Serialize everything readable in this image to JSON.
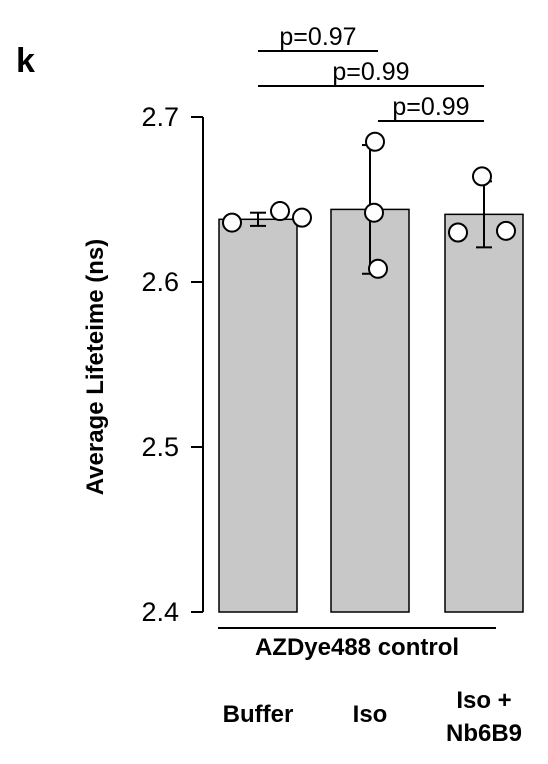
{
  "panel_label": "k",
  "chart_data": {
    "type": "bar",
    "ylabel": "Average Lifeteime (ns)",
    "ylim": [
      2.4,
      2.7
    ],
    "yticks": [
      "2.4",
      "2.5",
      "2.6",
      "2.7"
    ],
    "group_label": "AZDye488 control",
    "categories": [
      {
        "lines": [
          "Buffer"
        ]
      },
      {
        "lines": [
          "Iso"
        ]
      },
      {
        "lines": [
          "Iso +",
          "Nb6B9"
        ]
      }
    ],
    "values": [
      2.638,
      2.644,
      2.641
    ],
    "error": [
      0.004,
      0.039,
      0.02
    ],
    "points": [
      [
        2.636,
        2.643,
        2.639
      ],
      [
        2.685,
        2.642,
        2.608
      ],
      [
        2.664,
        2.63,
        2.631
      ]
    ],
    "comparisons": [
      {
        "text": "p=0.97",
        "from": 0,
        "to": 1
      },
      {
        "text": "p=0.99",
        "from": 0,
        "to": 2
      },
      {
        "text": "p=0.99",
        "from": 1,
        "to": 2
      }
    ],
    "colors": {
      "bar": "#c8c8c8",
      "edge": "#000000",
      "point": "#ffffff"
    }
  }
}
